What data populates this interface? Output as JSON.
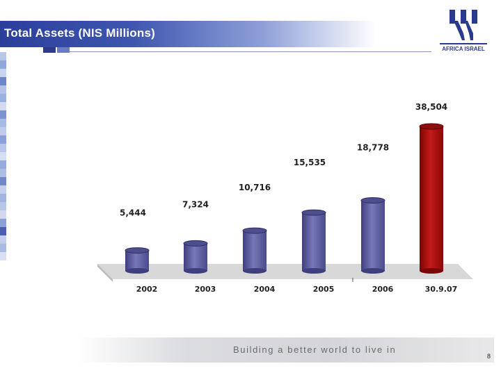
{
  "slide": {
    "title": "Total Assets (NIS Millions)",
    "logo_text": "AFRICA ISRAEL",
    "tagline": "Building a better world to live in",
    "page_number": "8"
  },
  "chart_data": {
    "type": "bar",
    "title": "Total Assets (NIS Millions)",
    "categories": [
      "2002",
      "2003",
      "2004",
      "2005",
      "2006",
      "30.9.07"
    ],
    "values": [
      5444,
      7324,
      10716,
      15535,
      18778,
      38504
    ],
    "value_labels": [
      "5,444",
      "7,324",
      "10,716",
      "15,535",
      "18,778",
      "38,504"
    ],
    "xlabel": "",
    "ylabel": "",
    "ylim": [
      0,
      40000
    ],
    "grid": false,
    "legend": "none",
    "colors": {
      "regular": "#5e5fa0",
      "highlight": "#a81010"
    }
  }
}
